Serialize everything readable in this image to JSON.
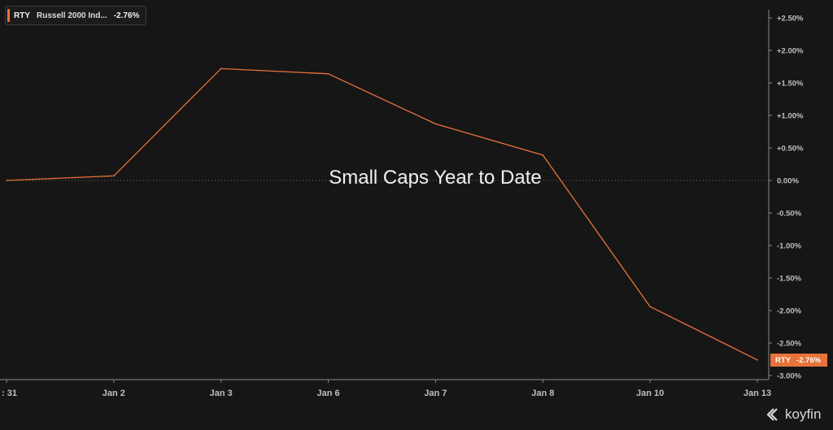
{
  "legend": {
    "symbol": "RTY",
    "name": "Russell 2000 Ind...",
    "change": "-2.76%"
  },
  "overlay_title": "Small Caps Year to Date",
  "price_tag": {
    "symbol": "RTY",
    "value": "-2.76%"
  },
  "brand": {
    "name": "koyfin",
    "icon": "koyfin-logo-icon"
  },
  "colors": {
    "background": "#161616",
    "series": "#e8733a",
    "axis": "#bfbfbf",
    "text": "#e6e6e6"
  },
  "chart_data": {
    "type": "line",
    "title": "Small Caps Year to Date",
    "x": [
      ": 31",
      "Jan 2",
      "Jan 3",
      "Jan 6",
      "Jan 7",
      "Jan 8",
      "Jan 10",
      "Jan 13"
    ],
    "x_ticks": [
      ": 31",
      "Jan 2",
      "Jan 3",
      "Jan 6",
      "Jan 7",
      "Jan 8",
      "Jan 10",
      "Jan 13"
    ],
    "series": [
      {
        "name": "Russell 2000 Ind...",
        "values": [
          0.0,
          0.07,
          1.72,
          1.64,
          0.87,
          0.39,
          -1.94,
          -2.76
        ]
      }
    ],
    "y_ticks": [
      "+2.50%",
      "+2.00%",
      "+1.50%",
      "+1.00%",
      "+0.50%",
      "0.00%",
      "-0.50%",
      "-1.00%",
      "-1.50%",
      "-2.00%",
      "-2.50%",
      "-3.00%"
    ],
    "y_tick_values": [
      2.5,
      2.0,
      1.5,
      1.0,
      0.5,
      0.0,
      -0.5,
      -1.0,
      -1.5,
      -2.0,
      -2.5,
      -3.0
    ],
    "ylim": [
      -3.0,
      2.5
    ],
    "ylabel": "",
    "xlabel": "",
    "grid": false,
    "zero_line": true,
    "legend_position": "top-left"
  }
}
